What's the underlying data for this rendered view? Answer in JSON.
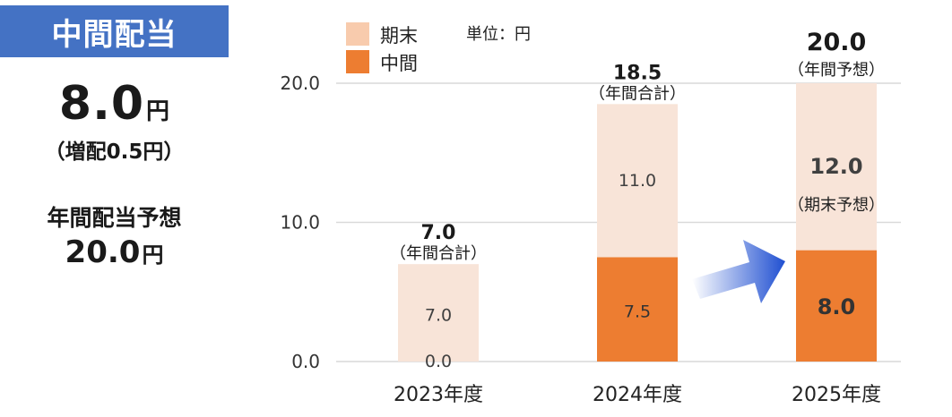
{
  "summary": {
    "title": "中間配当",
    "interim_value": "8.0",
    "interim_unit": "円",
    "increase_note": "（増配0.5円）",
    "forecast_title": "年間配当予想",
    "forecast_value": "20.0",
    "forecast_unit": "円"
  },
  "colors": {
    "title_bg": "#4472c4",
    "year_end": "#f8e4d8",
    "year_end_legend": "#f8cbad",
    "interim": "#ed7d31",
    "grid": "#d9d9d9",
    "arrow_start": "#ffffff",
    "arrow_end": "#1f4fd1"
  },
  "chart_data": {
    "type": "bar",
    "stacked": true,
    "unit_label": "単位：円",
    "categories": [
      "2023年度",
      "2024年度",
      "2025年度"
    ],
    "series": [
      {
        "name": "中間",
        "values": [
          0.0,
          7.5,
          8.0
        ]
      },
      {
        "name": "期末",
        "values": [
          7.0,
          11.0,
          12.0
        ]
      }
    ],
    "value_labels": {
      "中間": [
        "0.0",
        "7.5",
        "8.0"
      ],
      "期末": [
        "7.0",
        "11.0",
        "12.0"
      ]
    },
    "totals": [
      "7.0",
      "18.5",
      "20.0"
    ],
    "total_notes": [
      "（年間合計）",
      "（年間合計）",
      "（年間予想）"
    ],
    "segment_notes": [
      "",
      "",
      "（期末予想）"
    ],
    "y_ticks": [
      "0.0",
      "10.0",
      "20.0"
    ],
    "ylim": [
      0,
      20
    ],
    "grid": true,
    "legend_position": "top-left",
    "annotation": "arrow from 2024年度 to 2025年度"
  }
}
